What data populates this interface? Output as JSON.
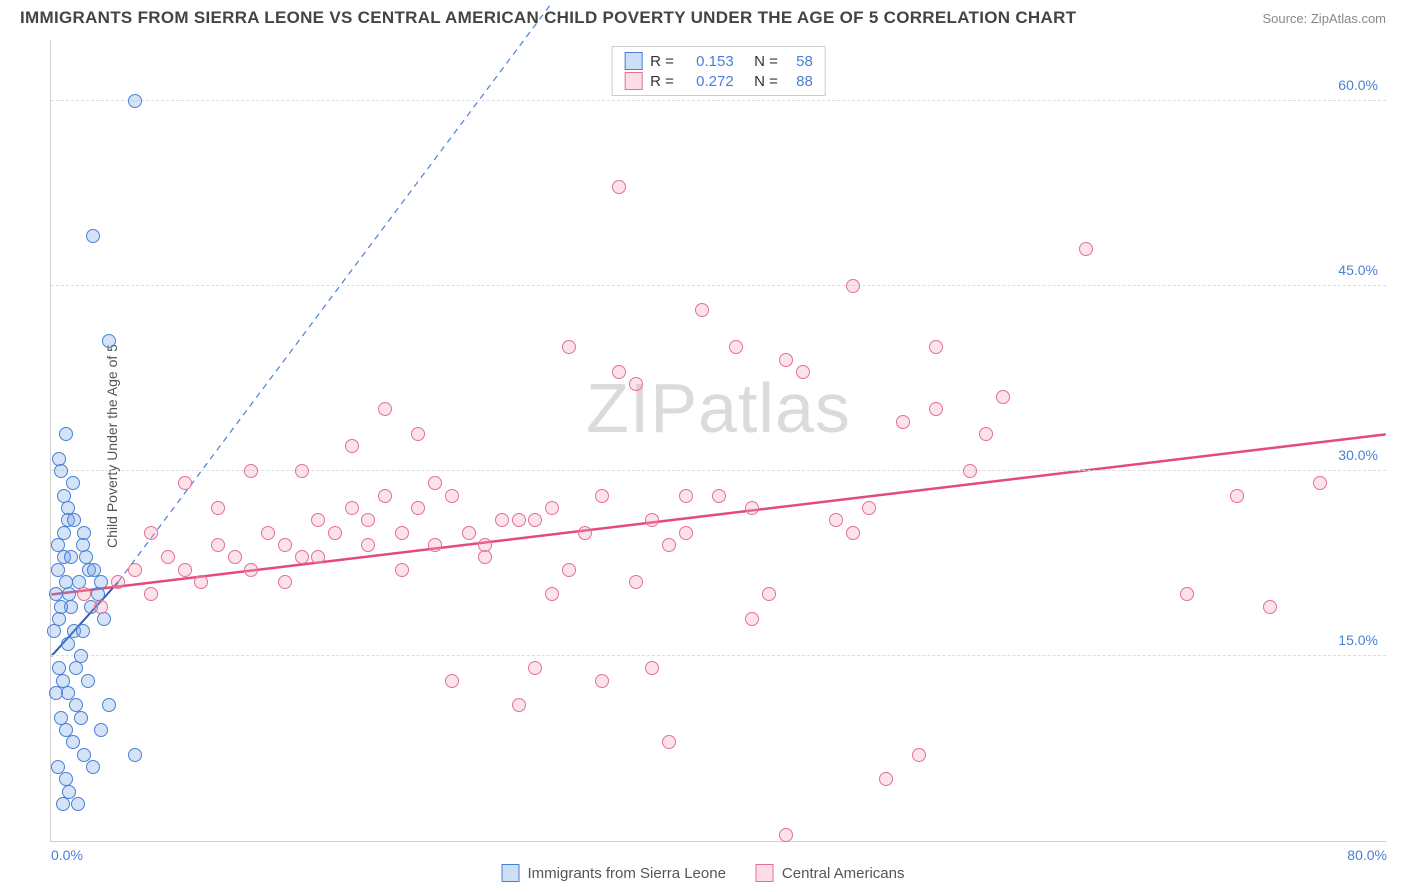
{
  "title": "IMMIGRANTS FROM SIERRA LEONE VS CENTRAL AMERICAN CHILD POVERTY UNDER THE AGE OF 5 CORRELATION CHART",
  "source_label": "Source: ZipAtlas.com",
  "ylabel": "Child Poverty Under the Age of 5",
  "watermark_a": "ZIP",
  "watermark_b": "atlas",
  "chart": {
    "type": "scatter",
    "xlim": [
      0,
      80
    ],
    "ylim": [
      0,
      65
    ],
    "xticks": [
      {
        "v": 0,
        "l": "0.0%"
      },
      {
        "v": 80,
        "l": "80.0%"
      }
    ],
    "yticks": [
      {
        "v": 15,
        "l": "15.0%"
      },
      {
        "v": 30,
        "l": "30.0%"
      },
      {
        "v": 45,
        "l": "45.0%"
      },
      {
        "v": 60,
        "l": "60.0%"
      }
    ],
    "grid_color": "#dddddd",
    "background_color": "#ffffff",
    "point_radius": 7,
    "point_border_width": 1.3,
    "point_fill_opacity": 0.3,
    "series": [
      {
        "key": "sl",
        "name": "Immigrants from Sierra Leone",
        "color": "#6fa3e0",
        "border": "#4a7fd8",
        "R": "0.153",
        "N": "58",
        "regression": {
          "x1": 0,
          "y1": 15,
          "x2": 4,
          "y2": 21,
          "dashed_ext_x": 30,
          "dashed_ext_y": 68,
          "color": "#2f5fb3",
          "width": 2
        },
        "points": [
          [
            0.3,
            20
          ],
          [
            0.5,
            18
          ],
          [
            0.4,
            22
          ],
          [
            0.8,
            25
          ],
          [
            1.0,
            27
          ],
          [
            0.6,
            30
          ],
          [
            1.2,
            19
          ],
          [
            0.2,
            17
          ],
          [
            0.5,
            14
          ],
          [
            0.7,
            13
          ],
          [
            1.0,
            12
          ],
          [
            1.5,
            11
          ],
          [
            1.8,
            10
          ],
          [
            0.9,
            9
          ],
          [
            1.3,
            8
          ],
          [
            2.0,
            7
          ],
          [
            2.5,
            6
          ],
          [
            0.4,
            6
          ],
          [
            0.9,
            5
          ],
          [
            1.1,
            4
          ],
          [
            1.6,
            3
          ],
          [
            0.7,
            3
          ],
          [
            5.0,
            7
          ],
          [
            3.0,
            9
          ],
          [
            3.5,
            11
          ],
          [
            2.2,
            13
          ],
          [
            1.8,
            15
          ],
          [
            1.4,
            17
          ],
          [
            1.1,
            20
          ],
          [
            0.8,
            23
          ],
          [
            1.0,
            26
          ],
          [
            1.3,
            29
          ],
          [
            0.5,
            31
          ],
          [
            0.9,
            33
          ],
          [
            3.5,
            40.5
          ],
          [
            5.0,
            60
          ],
          [
            2.5,
            49
          ],
          [
            2.0,
            25
          ],
          [
            2.3,
            22
          ],
          [
            2.8,
            20
          ],
          [
            3.2,
            18
          ],
          [
            0.3,
            12
          ],
          [
            0.6,
            10
          ],
          [
            1.5,
            14
          ],
          [
            1.9,
            17
          ],
          [
            2.4,
            19
          ],
          [
            0.4,
            24
          ],
          [
            0.9,
            21
          ],
          [
            1.2,
            23
          ],
          [
            1.7,
            21
          ],
          [
            2.1,
            23
          ],
          [
            1.0,
            16
          ],
          [
            0.6,
            19
          ],
          [
            0.8,
            28
          ],
          [
            1.4,
            26
          ],
          [
            1.9,
            24
          ],
          [
            2.6,
            22
          ],
          [
            3.0,
            21
          ]
        ]
      },
      {
        "key": "ca",
        "name": "Central Americans",
        "color": "#f5a3b8",
        "border": "#e76f94",
        "R": "0.272",
        "N": "88",
        "regression": {
          "x1": 0,
          "y1": 20,
          "x2": 80,
          "y2": 33,
          "color": "#e34b7a",
          "width": 2.5
        },
        "points": [
          [
            2,
            20
          ],
          [
            3,
            19
          ],
          [
            4,
            21
          ],
          [
            5,
            22
          ],
          [
            6,
            20
          ],
          [
            7,
            23
          ],
          [
            8,
            22
          ],
          [
            9,
            21
          ],
          [
            10,
            24
          ],
          [
            11,
            23
          ],
          [
            12,
            22
          ],
          [
            13,
            25
          ],
          [
            14,
            24
          ],
          [
            15,
            23
          ],
          [
            16,
            26
          ],
          [
            17,
            25
          ],
          [
            18,
            27
          ],
          [
            19,
            26
          ],
          [
            20,
            28
          ],
          [
            21,
            25
          ],
          [
            22,
            27
          ],
          [
            23,
            29
          ],
          [
            24,
            28
          ],
          [
            15,
            30
          ],
          [
            8,
            29
          ],
          [
            18,
            32
          ],
          [
            20,
            35
          ],
          [
            22,
            33
          ],
          [
            24,
            13
          ],
          [
            25,
            25
          ],
          [
            26,
            24
          ],
          [
            27,
            26
          ],
          [
            28,
            11
          ],
          [
            29,
            14
          ],
          [
            30,
            27
          ],
          [
            31,
            40
          ],
          [
            32,
            25
          ],
          [
            33,
            13
          ],
          [
            34,
            38
          ],
          [
            35,
            37
          ],
          [
            36,
            26
          ],
          [
            36,
            14
          ],
          [
            37,
            24
          ],
          [
            37,
            8
          ],
          [
            38,
            25
          ],
          [
            39,
            43
          ],
          [
            40,
            28
          ],
          [
            41,
            40
          ],
          [
            42,
            27
          ],
          [
            42,
            18
          ],
          [
            43,
            20
          ],
          [
            44,
            39
          ],
          [
            45,
            38
          ],
          [
            47,
            26
          ],
          [
            48,
            25
          ],
          [
            49,
            27
          ],
          [
            51,
            34
          ],
          [
            53,
            35
          ],
          [
            55,
            30
          ],
          [
            56,
            33
          ],
          [
            57,
            36
          ],
          [
            48,
            45
          ],
          [
            34,
            53
          ],
          [
            53,
            40
          ],
          [
            71,
            28
          ],
          [
            73,
            19
          ],
          [
            76,
            29
          ],
          [
            62,
            48
          ],
          [
            68,
            20
          ],
          [
            50,
            5
          ],
          [
            52,
            7
          ],
          [
            31,
            22
          ],
          [
            10,
            27
          ],
          [
            6,
            25
          ],
          [
            44,
            0.5
          ],
          [
            29,
            26
          ],
          [
            33,
            28
          ],
          [
            30,
            20
          ],
          [
            35,
            21
          ],
          [
            38,
            28
          ],
          [
            12,
            30
          ],
          [
            14,
            21
          ],
          [
            16,
            23
          ],
          [
            19,
            24
          ],
          [
            21,
            22
          ],
          [
            23,
            24
          ],
          [
            26,
            23
          ],
          [
            28,
            26
          ]
        ]
      }
    ]
  },
  "legend": {
    "r_label": "R  =",
    "n_label": "N  ="
  }
}
